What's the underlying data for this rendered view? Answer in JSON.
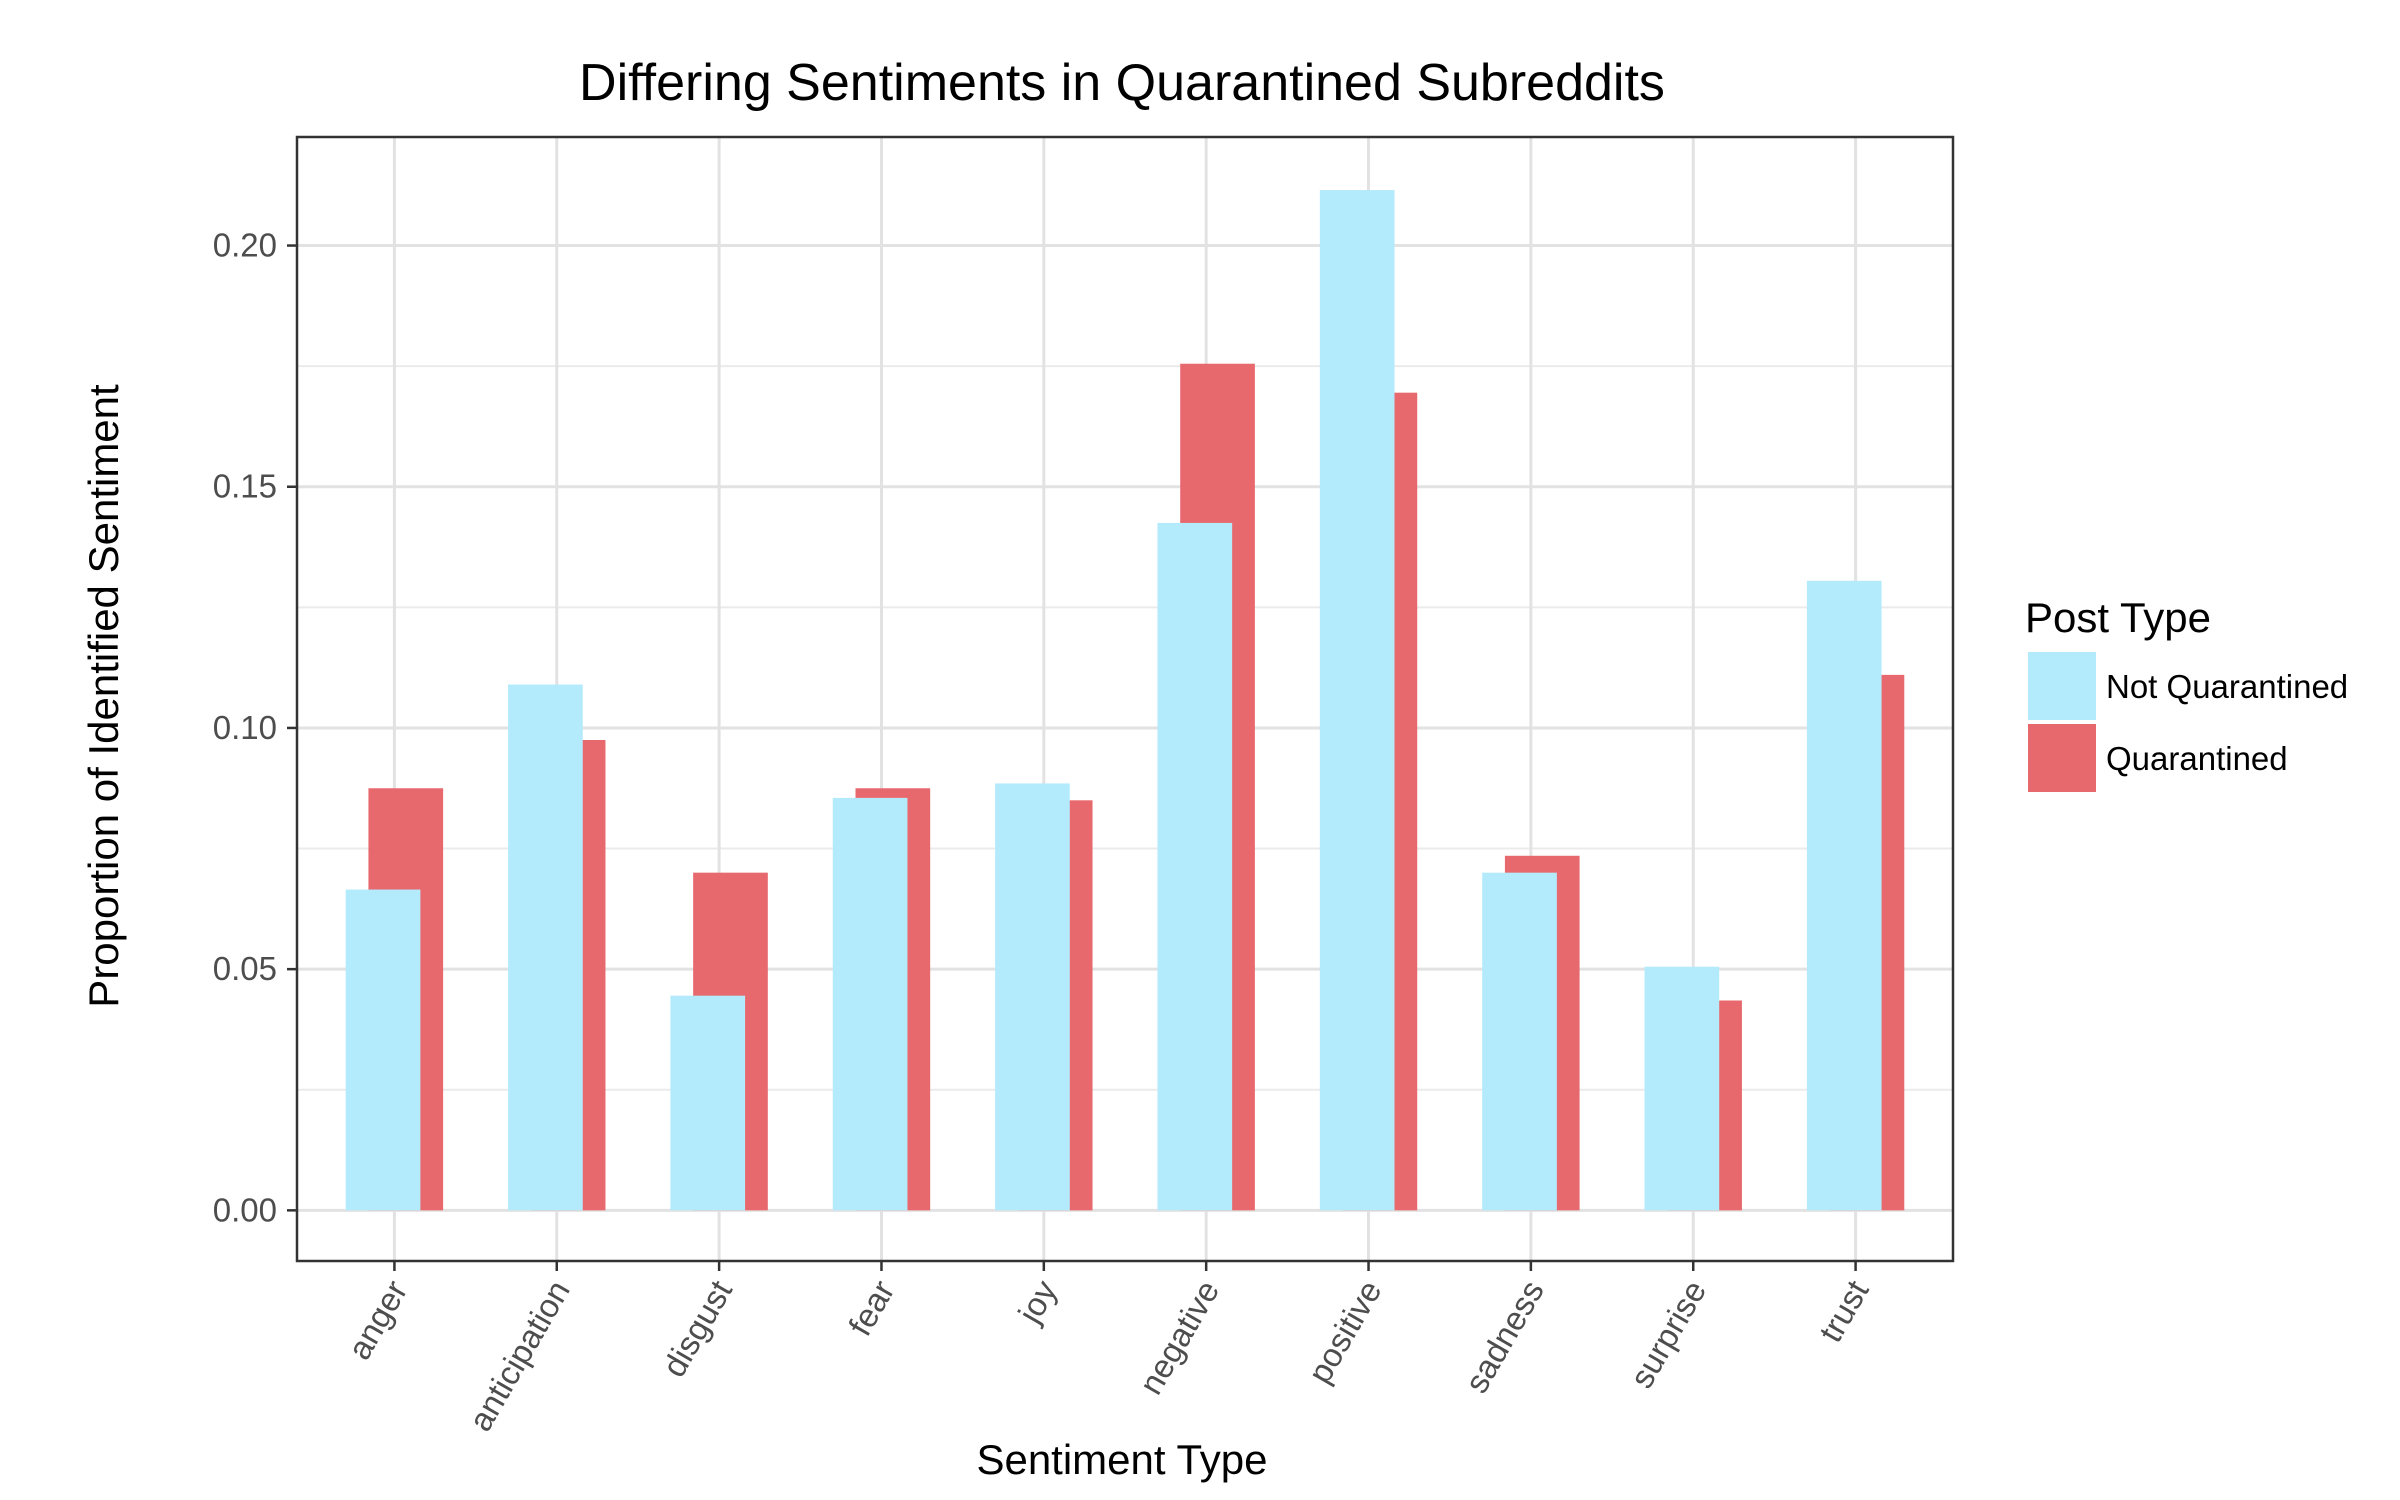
{
  "chart_data": {
    "type": "bar",
    "title": "Differing Sentiments in Quarantined Subreddits",
    "xlabel": "Sentiment Type",
    "ylabel": "Proportion of Identified Sentiment",
    "categories": [
      "anger",
      "anticipation",
      "disgust",
      "fear",
      "joy",
      "negative",
      "positive",
      "sadness",
      "surprise",
      "trust"
    ],
    "series": [
      {
        "name": "Not Quarantined",
        "color": "#b3ebfc",
        "values": [
          0.0665,
          0.109,
          0.0445,
          0.0855,
          0.0885,
          0.1425,
          0.2115,
          0.07,
          0.0505,
          0.1305
        ]
      },
      {
        "name": "Quarantined",
        "color": "#e8696d",
        "values": [
          0.0875,
          0.0975,
          0.07,
          0.0875,
          0.085,
          0.1755,
          0.1695,
          0.0735,
          0.0435,
          0.111
        ]
      }
    ],
    "ylim": [
      -0.0105,
      0.2225
    ],
    "yticks": [
      0.0,
      0.05,
      0.1,
      0.15,
      0.2
    ],
    "ytick_labels": [
      "0.00",
      "0.05",
      "0.10",
      "0.15",
      "0.20"
    ],
    "grid": true,
    "legend": {
      "title": "Post Type",
      "position": "right"
    }
  }
}
